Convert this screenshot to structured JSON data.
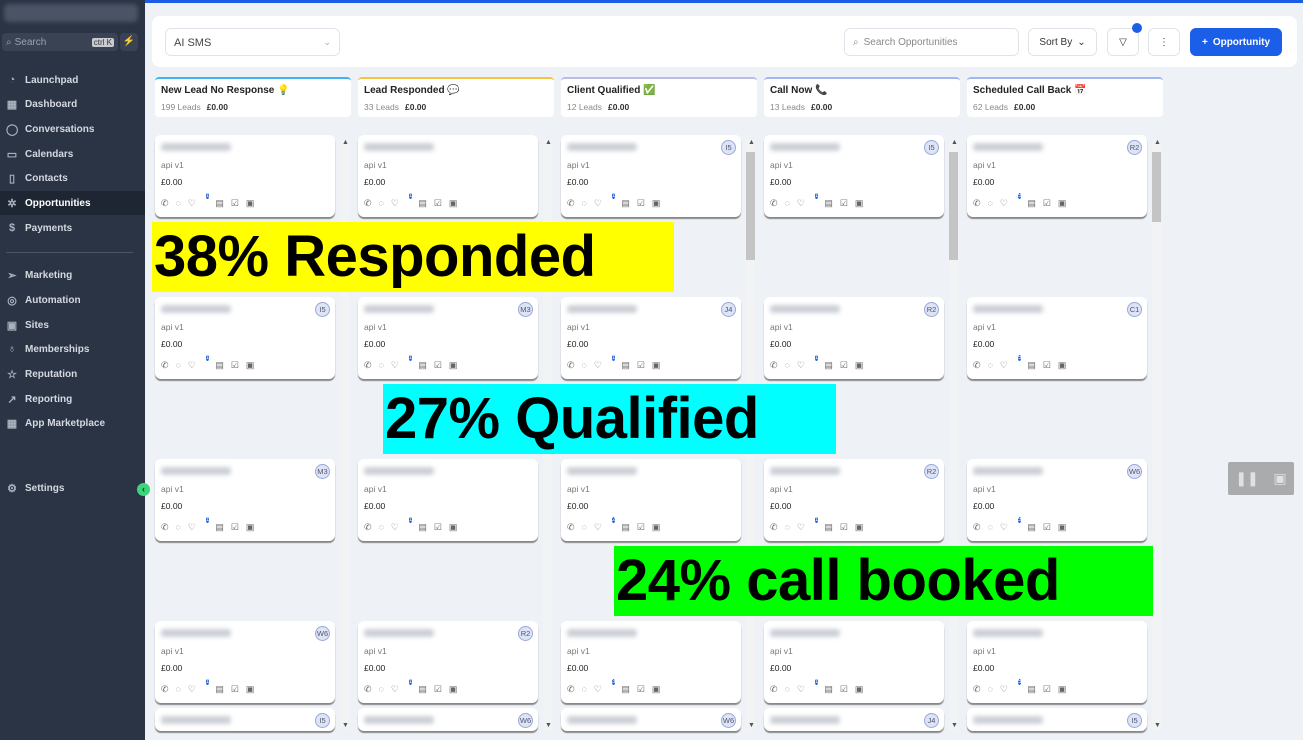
{
  "sidebar": {
    "search_placeholder": "Search",
    "shortcut": "ctrl K",
    "items": [
      {
        "label": "Launchpad",
        "icon": "rocket-icon",
        "glyph": "◔"
      },
      {
        "label": "Dashboard",
        "icon": "grid-icon",
        "glyph": "▦"
      },
      {
        "label": "Conversations",
        "icon": "chat-icon",
        "glyph": "◯"
      },
      {
        "label": "Calendars",
        "icon": "calendar-icon",
        "glyph": "▭"
      },
      {
        "label": "Contacts",
        "icon": "contacts-icon",
        "glyph": "▯"
      },
      {
        "label": "Opportunities",
        "icon": "opportunities-icon",
        "glyph": "✲",
        "active": true
      },
      {
        "label": "Payments",
        "icon": "payments-icon",
        "glyph": "$"
      },
      {
        "label": "Marketing",
        "icon": "send-icon",
        "glyph": "➢"
      },
      {
        "label": "Automation",
        "icon": "automation-icon",
        "glyph": "◎"
      },
      {
        "label": "Sites",
        "icon": "sites-icon",
        "glyph": "▣"
      },
      {
        "label": "Memberships",
        "icon": "award-icon",
        "glyph": "♁"
      },
      {
        "label": "Reputation",
        "icon": "star-icon",
        "glyph": "☆"
      },
      {
        "label": "Reporting",
        "icon": "trend-icon",
        "glyph": "↗"
      },
      {
        "label": "App Marketplace",
        "icon": "apps-icon",
        "glyph": "▦"
      }
    ],
    "settings": "Settings"
  },
  "header": {
    "pipeline": "AI SMS",
    "search_placeholder": "Search Opportunities",
    "sort": "Sort By",
    "add": "Opportunity"
  },
  "accent": "#1b5ee8",
  "stages": [
    {
      "title": "New Lead No Response",
      "emoji": "💡",
      "leads": "199 Leads",
      "value": "£0.00",
      "color": "#3fb4f0"
    },
    {
      "title": "Lead Responded",
      "emoji": "💬",
      "leads": "33 Leads",
      "value": "£0.00",
      "color": "#f5c542"
    },
    {
      "title": "Client Qualified",
      "emoji": "✅",
      "leads": "12 Leads",
      "value": "£0.00",
      "color": "#b9bde8"
    },
    {
      "title": "Call Now",
      "emoji": "📞",
      "leads": "13 Leads",
      "value": "£0.00",
      "color": "#9fb8f0"
    },
    {
      "title": "Scheduled Call Back",
      "emoji": "📅",
      "leads": "62 Leads",
      "value": "£0.00",
      "color": "#9fb8f0"
    }
  ],
  "cards": [
    [
      {
        "av": "",
        "n": "1"
      },
      {
        "av": "I5",
        "n": "1"
      },
      {
        "av": "M3",
        "n": "1"
      },
      {
        "av": "W6",
        "n": "1"
      },
      {
        "av": "I5",
        "n": ""
      }
    ],
    [
      {
        "av": "",
        "n": "1"
      },
      {
        "av": "M3",
        "n": "1"
      },
      {
        "av": "",
        "n": "1"
      },
      {
        "av": "R2",
        "n": "1"
      },
      {
        "av": "W6",
        "n": ""
      }
    ],
    [
      {
        "av": "I5",
        "n": "1"
      },
      {
        "av": "J4",
        "n": "1"
      },
      {
        "av": "",
        "n": "2"
      },
      {
        "av": "",
        "n": "3"
      },
      {
        "av": "W6",
        "n": ""
      }
    ],
    [
      {
        "av": "I5",
        "n": "1"
      },
      {
        "av": "R2",
        "n": "1"
      },
      {
        "av": "R2",
        "n": "1"
      },
      {
        "av": "",
        "n": "1"
      },
      {
        "av": "J4",
        "n": ""
      }
    ],
    [
      {
        "av": "R2",
        "n": "5"
      },
      {
        "av": "C1",
        "n": "5"
      },
      {
        "av": "W6",
        "n": "5"
      },
      {
        "av": "",
        "n": "5"
      },
      {
        "av": "I5",
        "n": ""
      }
    ]
  ],
  "card_source": "api v1",
  "card_value": "£0.00",
  "overlays": [
    {
      "text": "38% Responded",
      "color": "#ffff00"
    },
    {
      "text": "27% Qualified",
      "color": "#00ffff"
    },
    {
      "text": "24% call booked",
      "color": "#00ff00"
    }
  ]
}
